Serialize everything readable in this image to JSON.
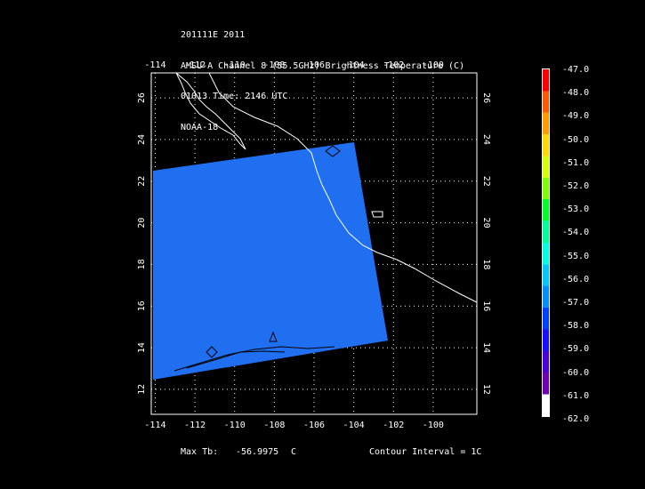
{
  "header": {
    "line1": "201111E 2011",
    "line2": "AMSU-A Channel 8 (55.5GHz) Brightness Temperature (C)",
    "line3": "01013 Time: 2146 UTC",
    "line4": "NOAA-18"
  },
  "map": {
    "lon_ticks": [
      "-114",
      "-112",
      "-110",
      "-108",
      "-106",
      "-104",
      "-102",
      "-100"
    ],
    "lat_ticks": [
      "12",
      "14",
      "16",
      "18",
      "20",
      "22",
      "24",
      "26"
    ],
    "lon_range": [
      -114.2,
      -97.8
    ],
    "lat_range": [
      10.8,
      27.2
    ],
    "grid": true,
    "swath_color": "#1f6ff0"
  },
  "footer": {
    "max_label": "Max Tb:",
    "max_value": "-56.9975",
    "max_unit": "C",
    "contour": "Contour Interval = 1C"
  },
  "colorbar": {
    "labels": [
      "-47.0",
      "-48.0",
      "-49.0",
      "-50.0",
      "-51.0",
      "-52.0",
      "-53.0",
      "-54.0",
      "-55.0",
      "-56.0",
      "-57.0",
      "-58.0",
      "-59.0",
      "-60.0",
      "-61.0",
      "-62.0"
    ],
    "colors": [
      "#ff0000",
      "#ff5a00",
      "#ff9a00",
      "#ffd800",
      "#d8ff00",
      "#7cff00",
      "#00ff2a",
      "#00ff9a",
      "#00ffe0",
      "#00c8ff",
      "#0090ff",
      "#0040ff",
      "#1a10ff",
      "#4a00d8",
      "#6e00b0",
      "#ffffff"
    ]
  }
}
